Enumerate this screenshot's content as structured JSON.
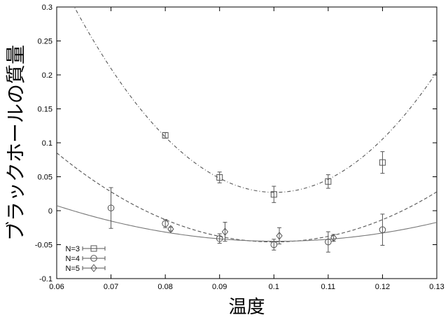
{
  "chart_data": {
    "type": "scatter",
    "title": "",
    "xlabel": "温度",
    "ylabel": "ブラックホールの質量",
    "xlim": [
      0.06,
      0.13
    ],
    "ylim": [
      -0.1,
      0.3
    ],
    "xticks": [
      "0.06",
      "0.07",
      "0.08",
      "0.09",
      "0.1",
      "0.11",
      "0.12",
      "0.13"
    ],
    "yticks": [
      "-0.1",
      "-0.05",
      "0",
      "0.05",
      "0.1",
      "0.15",
      "0.2",
      "0.25",
      "0.3"
    ],
    "grid": false,
    "legend_position": "bottom-left",
    "series": [
      {
        "name": "N=3",
        "marker": "square",
        "x": [
          0.08,
          0.09,
          0.1,
          0.11,
          0.12
        ],
        "y": [
          0.111,
          0.049,
          0.024,
          0.043,
          0.071
        ],
        "err": [
          0.004,
          0.008,
          0.012,
          0.01,
          0.016
        ],
        "fit": {
          "style": "dash-dot",
          "vertex_x": 0.1002,
          "vertex_y": 0.027,
          "curvature": 200
        }
      },
      {
        "name": "N=4",
        "marker": "circle",
        "x": [
          0.07,
          0.08,
          0.09,
          0.1,
          0.11,
          0.12
        ],
        "y": [
          0.004,
          -0.019,
          -0.041,
          -0.05,
          -0.046,
          -0.028
        ],
        "err": [
          0.03,
          0.006,
          0.007,
          0.008,
          0.015,
          0.023
        ],
        "fit": {
          "style": "dashed",
          "vertex_x": 0.1,
          "vertex_y": -0.046,
          "curvature": 82
        }
      },
      {
        "name": "N=5",
        "marker": "diamond",
        "x": [
          0.081,
          0.091,
          0.101,
          0.111
        ],
        "y": [
          -0.027,
          -0.031,
          -0.037,
          -0.04
        ],
        "err": [
          0.003,
          0.014,
          0.012,
          0.005
        ],
        "fit": {
          "style": "solid",
          "vertex_x": 0.1005,
          "vertex_y": -0.045,
          "curvature": 32
        }
      }
    ]
  }
}
